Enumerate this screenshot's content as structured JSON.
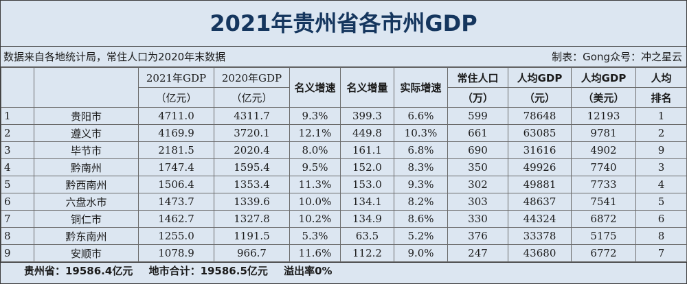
{
  "title": "2021年贵州省各市州GDP",
  "meta": {
    "source": "数据来自各地统计局，常住人口为2020年末数据",
    "credit": "制表：Gong众号：冲之星云"
  },
  "headers": {
    "gdp2021_top": "2021年GDP",
    "gdp2021_bottom": "（亿元）",
    "gdp2020_top": "2020年GDP",
    "gdp2020_bottom": "（亿元）",
    "nominal_growth": "名义增速",
    "nominal_increase": "名义增量",
    "real_growth": "实际增速",
    "pop_top": "常住人口",
    "pop_bottom": "（万）",
    "percap_cny_top": "人均GDP",
    "percap_cny_bottom": "（元）",
    "percap_usd_top": "人均GDP",
    "percap_usd_bottom": "（美元）",
    "rank_top": "人均",
    "rank_bottom": "排名"
  },
  "rows": [
    [
      "1",
      "贵阳市",
      "4711.0",
      "4311.7",
      "9.3%",
      "399.3",
      "6.6%",
      "599",
      "78648",
      "12193",
      "1"
    ],
    [
      "2",
      "遵义市",
      "4169.9",
      "3720.1",
      "12.1%",
      "449.8",
      "10.3%",
      "661",
      "63085",
      "9781",
      "2"
    ],
    [
      "3",
      "毕节市",
      "2181.5",
      "2020.4",
      "8.0%",
      "161.1",
      "6.8%",
      "690",
      "31616",
      "4902",
      "9"
    ],
    [
      "4",
      "黔南州",
      "1747.4",
      "1595.4",
      "9.5%",
      "152.0",
      "8.3%",
      "350",
      "49926",
      "7740",
      "3"
    ],
    [
      "5",
      "黔西南州",
      "1506.4",
      "1353.4",
      "11.3%",
      "153.0",
      "9.3%",
      "302",
      "49881",
      "7733",
      "4"
    ],
    [
      "6",
      "六盘水市",
      "1473.7",
      "1339.6",
      "10.0%",
      "134.1",
      "8.2%",
      "303",
      "48637",
      "7541",
      "5"
    ],
    [
      "7",
      "铜仁市",
      "1462.7",
      "1327.8",
      "10.2%",
      "134.9",
      "8.6%",
      "330",
      "44324",
      "6872",
      "6"
    ],
    [
      "8",
      "黔东南州",
      "1255.0",
      "1191.5",
      "5.3%",
      "63.5",
      "5.2%",
      "376",
      "33378",
      "5175",
      "8"
    ],
    [
      "9",
      "安顺市",
      "1078.9",
      "966.7",
      "11.6%",
      "112.2",
      "9.0%",
      "247",
      "43680",
      "6772",
      "7"
    ]
  ],
  "footer": {
    "province": "贵州省：19586.4亿元",
    "city_sum": "地市合计：19586.5亿元",
    "overflow": "溢出率0%"
  }
}
